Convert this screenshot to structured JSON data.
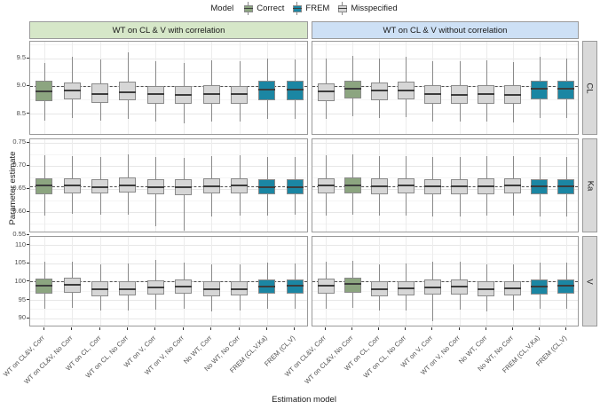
{
  "legend": {
    "title": "Model",
    "items": [
      {
        "label": "Correct",
        "color": "#8CA580"
      },
      {
        "label": "FREM",
        "color": "#1B86A3"
      },
      {
        "label": "Misspecified",
        "color": "#D6D6D6"
      }
    ]
  },
  "facets": {
    "columns": [
      {
        "label": "WT on CL & V with correlation",
        "bg": "#D6E7C8"
      },
      {
        "label": "WT on CL & V without correlation",
        "bg": "#CDE0F5"
      }
    ],
    "rows": [
      {
        "label": "CL"
      },
      {
        "label": "Ka"
      },
      {
        "label": "V"
      }
    ]
  },
  "axes": {
    "x_title": "Estimation model",
    "y_title": "Parameter estimate"
  },
  "chart_data": {
    "type": "boxplot",
    "xlabel": "Estimation model",
    "ylabel": "Parameter estimate",
    "legend_position": "top",
    "grid": true,
    "box_values_order": [
      "low_whisker",
      "q1",
      "median",
      "q3",
      "high_whisker"
    ],
    "categories": [
      "WT on CL&V, Corr",
      "WT on CL&V, No Corr",
      "WT on CL, Corr",
      "WT on CL, No Corr",
      "WT on V, Corr",
      "WT on V, No Corr",
      "No WT, Corr",
      "No WT, No Corr",
      "FREM (CL,V,Ka)",
      "FREM (CL,V)"
    ],
    "facet_columns": [
      "WT on CL & V with correlation",
      "WT on CL & V without correlation"
    ],
    "facet_rows": [
      "CL",
      "Ka",
      "V"
    ],
    "model_by_category": {
      "with_correlation": [
        "Correct",
        "Misspecified",
        "Misspecified",
        "Misspecified",
        "Misspecified",
        "Misspecified",
        "Misspecified",
        "Misspecified",
        "FREM",
        "FREM"
      ],
      "without_correlation": [
        "Misspecified",
        "Correct",
        "Misspecified",
        "Misspecified",
        "Misspecified",
        "Misspecified",
        "Misspecified",
        "Misspecified",
        "FREM",
        "FREM"
      ]
    },
    "reference_lines": {
      "CL": 9.0,
      "Ka": 0.655,
      "V": 100
    },
    "rows": [
      {
        "name": "CL",
        "ylim": [
          8.1,
          9.8
        ],
        "tick_labels": [
          "8.5",
          "9.0",
          "9.5"
        ],
        "tick_values": [
          8.5,
          9.0,
          9.5
        ],
        "ref": 9.0,
        "with_correlation": [
          [
            8.38,
            8.73,
            8.9,
            9.1,
            9.42
          ],
          [
            8.42,
            8.76,
            8.91,
            9.07,
            9.52
          ],
          [
            8.37,
            8.7,
            8.86,
            9.04,
            9.48
          ],
          [
            8.4,
            8.74,
            8.89,
            9.08,
            9.6
          ],
          [
            8.35,
            8.68,
            8.85,
            9.0,
            9.45
          ],
          [
            8.33,
            8.67,
            8.84,
            9.0,
            9.42
          ],
          [
            8.36,
            8.68,
            8.85,
            9.01,
            9.47
          ],
          [
            8.35,
            8.67,
            8.85,
            9.0,
            9.44
          ],
          [
            8.4,
            8.74,
            8.93,
            9.1,
            9.5
          ],
          [
            8.41,
            8.74,
            8.93,
            9.1,
            9.48
          ]
        ],
        "without_correlation": [
          [
            8.4,
            8.72,
            8.9,
            9.05,
            9.5
          ],
          [
            8.45,
            8.78,
            8.95,
            9.1,
            9.55
          ],
          [
            8.42,
            8.74,
            8.91,
            9.06,
            9.5
          ],
          [
            8.44,
            8.76,
            8.92,
            9.08,
            9.52
          ],
          [
            8.36,
            8.68,
            8.85,
            9.02,
            9.45
          ],
          [
            8.35,
            8.67,
            8.84,
            9.01,
            9.44
          ],
          [
            8.36,
            8.68,
            8.85,
            9.02,
            9.46
          ],
          [
            8.34,
            8.67,
            8.84,
            9.01,
            9.43
          ],
          [
            8.42,
            8.76,
            8.95,
            9.1,
            9.52
          ],
          [
            8.42,
            8.76,
            8.95,
            9.1,
            9.5
          ]
        ]
      },
      {
        "name": "Ka",
        "ylim": [
          0.553,
          0.757
        ],
        "tick_labels": [
          "0.55",
          "0.60",
          "0.65",
          "0.70",
          "0.75"
        ],
        "tick_values": [
          0.55,
          0.6,
          0.65,
          0.7,
          0.75
        ],
        "ref": 0.655,
        "with_correlation": [
          [
            0.592,
            0.638,
            0.657,
            0.673,
            0.722
          ],
          [
            0.595,
            0.64,
            0.656,
            0.672,
            0.72
          ],
          [
            0.593,
            0.639,
            0.654,
            0.671,
            0.718
          ],
          [
            0.594,
            0.641,
            0.657,
            0.674,
            0.724
          ],
          [
            0.568,
            0.638,
            0.654,
            0.67,
            0.718
          ],
          [
            0.558,
            0.636,
            0.653,
            0.67,
            0.716
          ],
          [
            0.59,
            0.639,
            0.655,
            0.672,
            0.72
          ],
          [
            0.592,
            0.64,
            0.656,
            0.673,
            0.722
          ],
          [
            0.592,
            0.637,
            0.653,
            0.67,
            0.718
          ],
          [
            0.593,
            0.638,
            0.654,
            0.671,
            0.719
          ]
        ],
        "without_correlation": [
          [
            0.592,
            0.639,
            0.656,
            0.673,
            0.722
          ],
          [
            0.593,
            0.64,
            0.657,
            0.674,
            0.724
          ],
          [
            0.591,
            0.638,
            0.655,
            0.672,
            0.72
          ],
          [
            0.592,
            0.639,
            0.656,
            0.673,
            0.721
          ],
          [
            0.59,
            0.638,
            0.655,
            0.671,
            0.719
          ],
          [
            0.59,
            0.637,
            0.655,
            0.671,
            0.719
          ],
          [
            0.591,
            0.638,
            0.655,
            0.672,
            0.72
          ],
          [
            0.592,
            0.64,
            0.657,
            0.673,
            0.721
          ],
          [
            0.59,
            0.637,
            0.655,
            0.671,
            0.719
          ],
          [
            0.59,
            0.637,
            0.655,
            0.671,
            0.719
          ]
        ]
      },
      {
        "name": "V",
        "ylim": [
          87.5,
          112.2
        ],
        "tick_labels": [
          "90",
          "95",
          "100",
          "105",
          "110"
        ],
        "tick_values": [
          90,
          95,
          100,
          105,
          110
        ],
        "ref": 100,
        "with_correlation": [
          [
            92.5,
            96.8,
            99.0,
            100.9,
            105.3
          ],
          [
            92.8,
            97.0,
            99.2,
            101.0,
            105.5
          ],
          [
            92.0,
            96.0,
            97.8,
            100.0,
            104.8
          ],
          [
            92.2,
            96.2,
            98.0,
            100.2,
            105.0
          ],
          [
            92.3,
            96.4,
            98.3,
            100.4,
            105.8
          ],
          [
            92.5,
            96.6,
            98.6,
            100.6,
            105.2
          ],
          [
            91.8,
            96.0,
            97.9,
            100.0,
            104.6
          ],
          [
            92.0,
            96.1,
            98.0,
            100.1,
            104.8
          ],
          [
            92.5,
            96.6,
            98.7,
            100.6,
            105.2
          ],
          [
            92.6,
            96.6,
            98.8,
            100.6,
            105.0
          ]
        ],
        "without_correlation": [
          [
            92.6,
            96.8,
            99.0,
            100.8,
            105.4
          ],
          [
            92.8,
            97.0,
            99.3,
            101.0,
            105.6
          ],
          [
            92.0,
            96.0,
            98.0,
            100.0,
            104.8
          ],
          [
            92.1,
            96.1,
            98.1,
            100.1,
            104.9
          ],
          [
            89.3,
            96.4,
            98.5,
            100.5,
            105.3
          ],
          [
            92.4,
            96.5,
            98.6,
            100.6,
            105.4
          ],
          [
            91.9,
            96.0,
            98.0,
            100.0,
            104.7
          ],
          [
            92.0,
            96.1,
            98.1,
            100.1,
            104.8
          ],
          [
            92.5,
            96.5,
            98.7,
            100.5,
            105.2
          ],
          [
            92.6,
            96.6,
            98.8,
            100.6,
            105.1
          ]
        ]
      }
    ],
    "colors": {
      "correct": "#8CA580",
      "frem": "#1B86A3",
      "misspecified": "#D6D6D6",
      "box_border": "#8A8A8A",
      "median": "#3C3C3C",
      "reference_line": "#4F4F4F",
      "strip_with_correlation": "#D6E7C8",
      "strip_without_correlation": "#CDE0F5",
      "row_strip": "#D9D9D9"
    }
  }
}
